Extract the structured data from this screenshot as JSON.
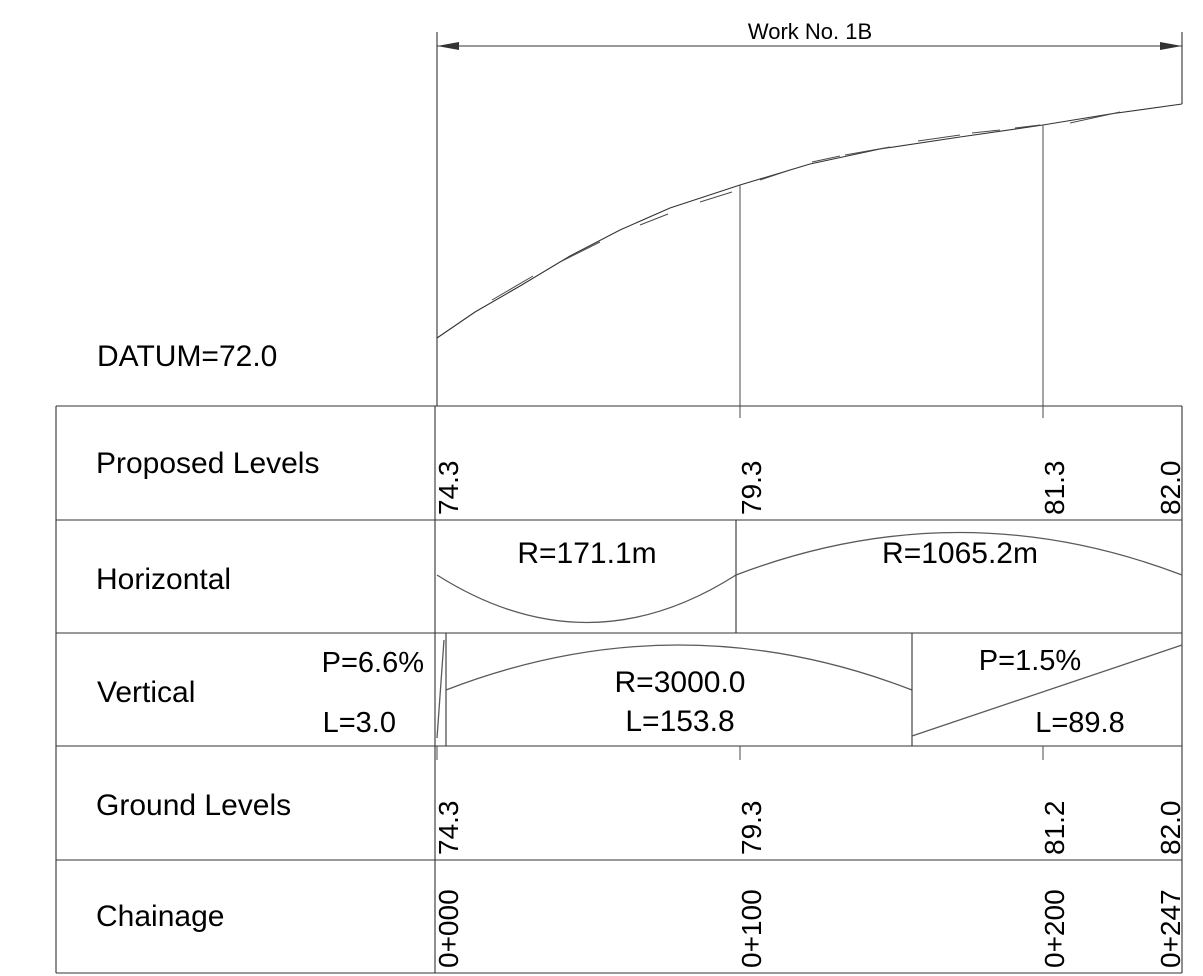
{
  "header": {
    "work_label": "Work No. 1B"
  },
  "datum": {
    "label": "DATUM=72.0"
  },
  "rows": {
    "proposed_levels": {
      "label": "Proposed Levels",
      "values": [
        "74.3",
        "79.3",
        "81.3",
        "82.0"
      ]
    },
    "horizontal": {
      "label": "Horizontal",
      "curves": [
        "R=171.1m",
        "R=1065.2m"
      ]
    },
    "vertical": {
      "label": "Vertical",
      "grade_left": "P=6.6%",
      "length_left": "L=3.0",
      "curve_radius": "R=3000.0",
      "curve_length": "L=153.8",
      "grade_right": "P=1.5%",
      "length_right": "L=89.8"
    },
    "ground_levels": {
      "label": "Ground Levels",
      "values": [
        "74.3",
        "79.3",
        "81.2",
        "82.0"
      ]
    },
    "chainage": {
      "label": "Chainage",
      "values": [
        "0+000",
        "0+100",
        "0+200",
        "0+247"
      ]
    }
  },
  "colors": {
    "lines": "#333333",
    "curves": "#5a5a5a",
    "text": "#000000"
  }
}
